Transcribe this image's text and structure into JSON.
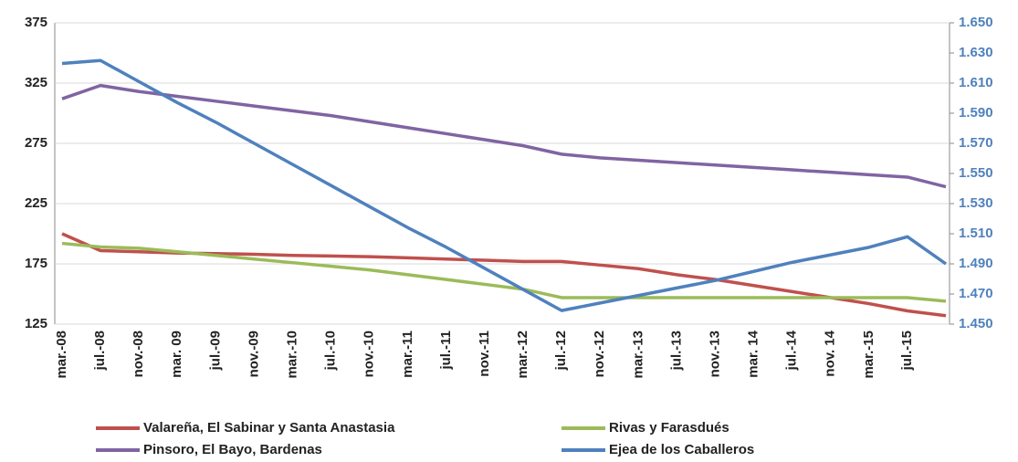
{
  "chart_data": {
    "type": "line",
    "categories": [
      "mar.-08",
      "jul.-08",
      "nov.-08",
      "mar. 09",
      "jul.-09",
      "nov.-09",
      "mar.-10",
      "jul.-10",
      "nov.-10",
      "mar.-11",
      "jul.-11",
      "nov.-11",
      "mar.-12",
      "jul.-12",
      "nov.-12",
      "mar.-13",
      "jul.-13",
      "nov.-13",
      "mar. 14",
      "jul.-14",
      "nov. 14",
      "mar.-15",
      "jul.-15",
      null
    ],
    "series": [
      {
        "name": "Valareña, El Sabinar y Santa Anastasia",
        "color": "#c0504d",
        "values": [
          200,
          186,
          185,
          184,
          183.5,
          183,
          182,
          181.5,
          181,
          180,
          179,
          178,
          177,
          177,
          174,
          171,
          166,
          162,
          157,
          152,
          147,
          142,
          136,
          132
        ]
      },
      {
        "name": "Rivas y Farasdués",
        "color": "#9bbb59",
        "values": [
          192,
          189,
          188,
          185,
          182,
          179,
          176,
          173,
          170,
          166,
          162,
          158,
          154,
          147,
          147,
          147,
          147,
          147,
          147,
          147,
          147,
          147,
          147,
          144
        ]
      },
      {
        "name": "Pinsoro, El Bayo, Bardenas",
        "color": "#8064a2",
        "values": [
          312,
          323,
          318,
          314,
          310,
          306,
          302,
          298,
          293,
          288,
          283,
          278,
          273,
          266,
          263,
          261,
          259,
          257,
          255,
          253,
          251,
          249,
          247,
          239
        ]
      },
      {
        "name": "Ejea de los Caballeros",
        "color": "#4f81bd",
        "axis": "y2",
        "values": [
          1.623,
          1.625,
          1.611,
          1.597,
          1.584,
          1.57,
          1.556,
          1.542,
          1.528,
          1.514,
          1.501,
          1.487,
          1.473,
          1.459,
          1.464,
          1.469,
          1.474,
          1.479,
          1.485,
          1.491,
          1.496,
          1.501,
          1.508,
          1.49
        ]
      }
    ],
    "ylim": [
      125,
      375
    ],
    "yticks": [
      125,
      175,
      225,
      275,
      325,
      375
    ],
    "y2lim": [
      1.45,
      1.65
    ],
    "y2ticks": [
      {
        "value": 1.45,
        "label": "1.450"
      },
      {
        "value": 1.47,
        "label": "1.470"
      },
      {
        "value": 1.49,
        "label": "1.490"
      },
      {
        "value": 1.51,
        "label": "1.510"
      },
      {
        "value": 1.53,
        "label": "1.530"
      },
      {
        "value": 1.55,
        "label": "1.550"
      },
      {
        "value": 1.57,
        "label": "1.570"
      },
      {
        "value": 1.59,
        "label": "1.590"
      },
      {
        "value": 1.61,
        "label": "1.610"
      },
      {
        "value": 1.63,
        "label": "1.630"
      },
      {
        "value": 1.65,
        "label": "1.650"
      }
    ],
    "y2color": "#4f81bd",
    "grid": true
  }
}
